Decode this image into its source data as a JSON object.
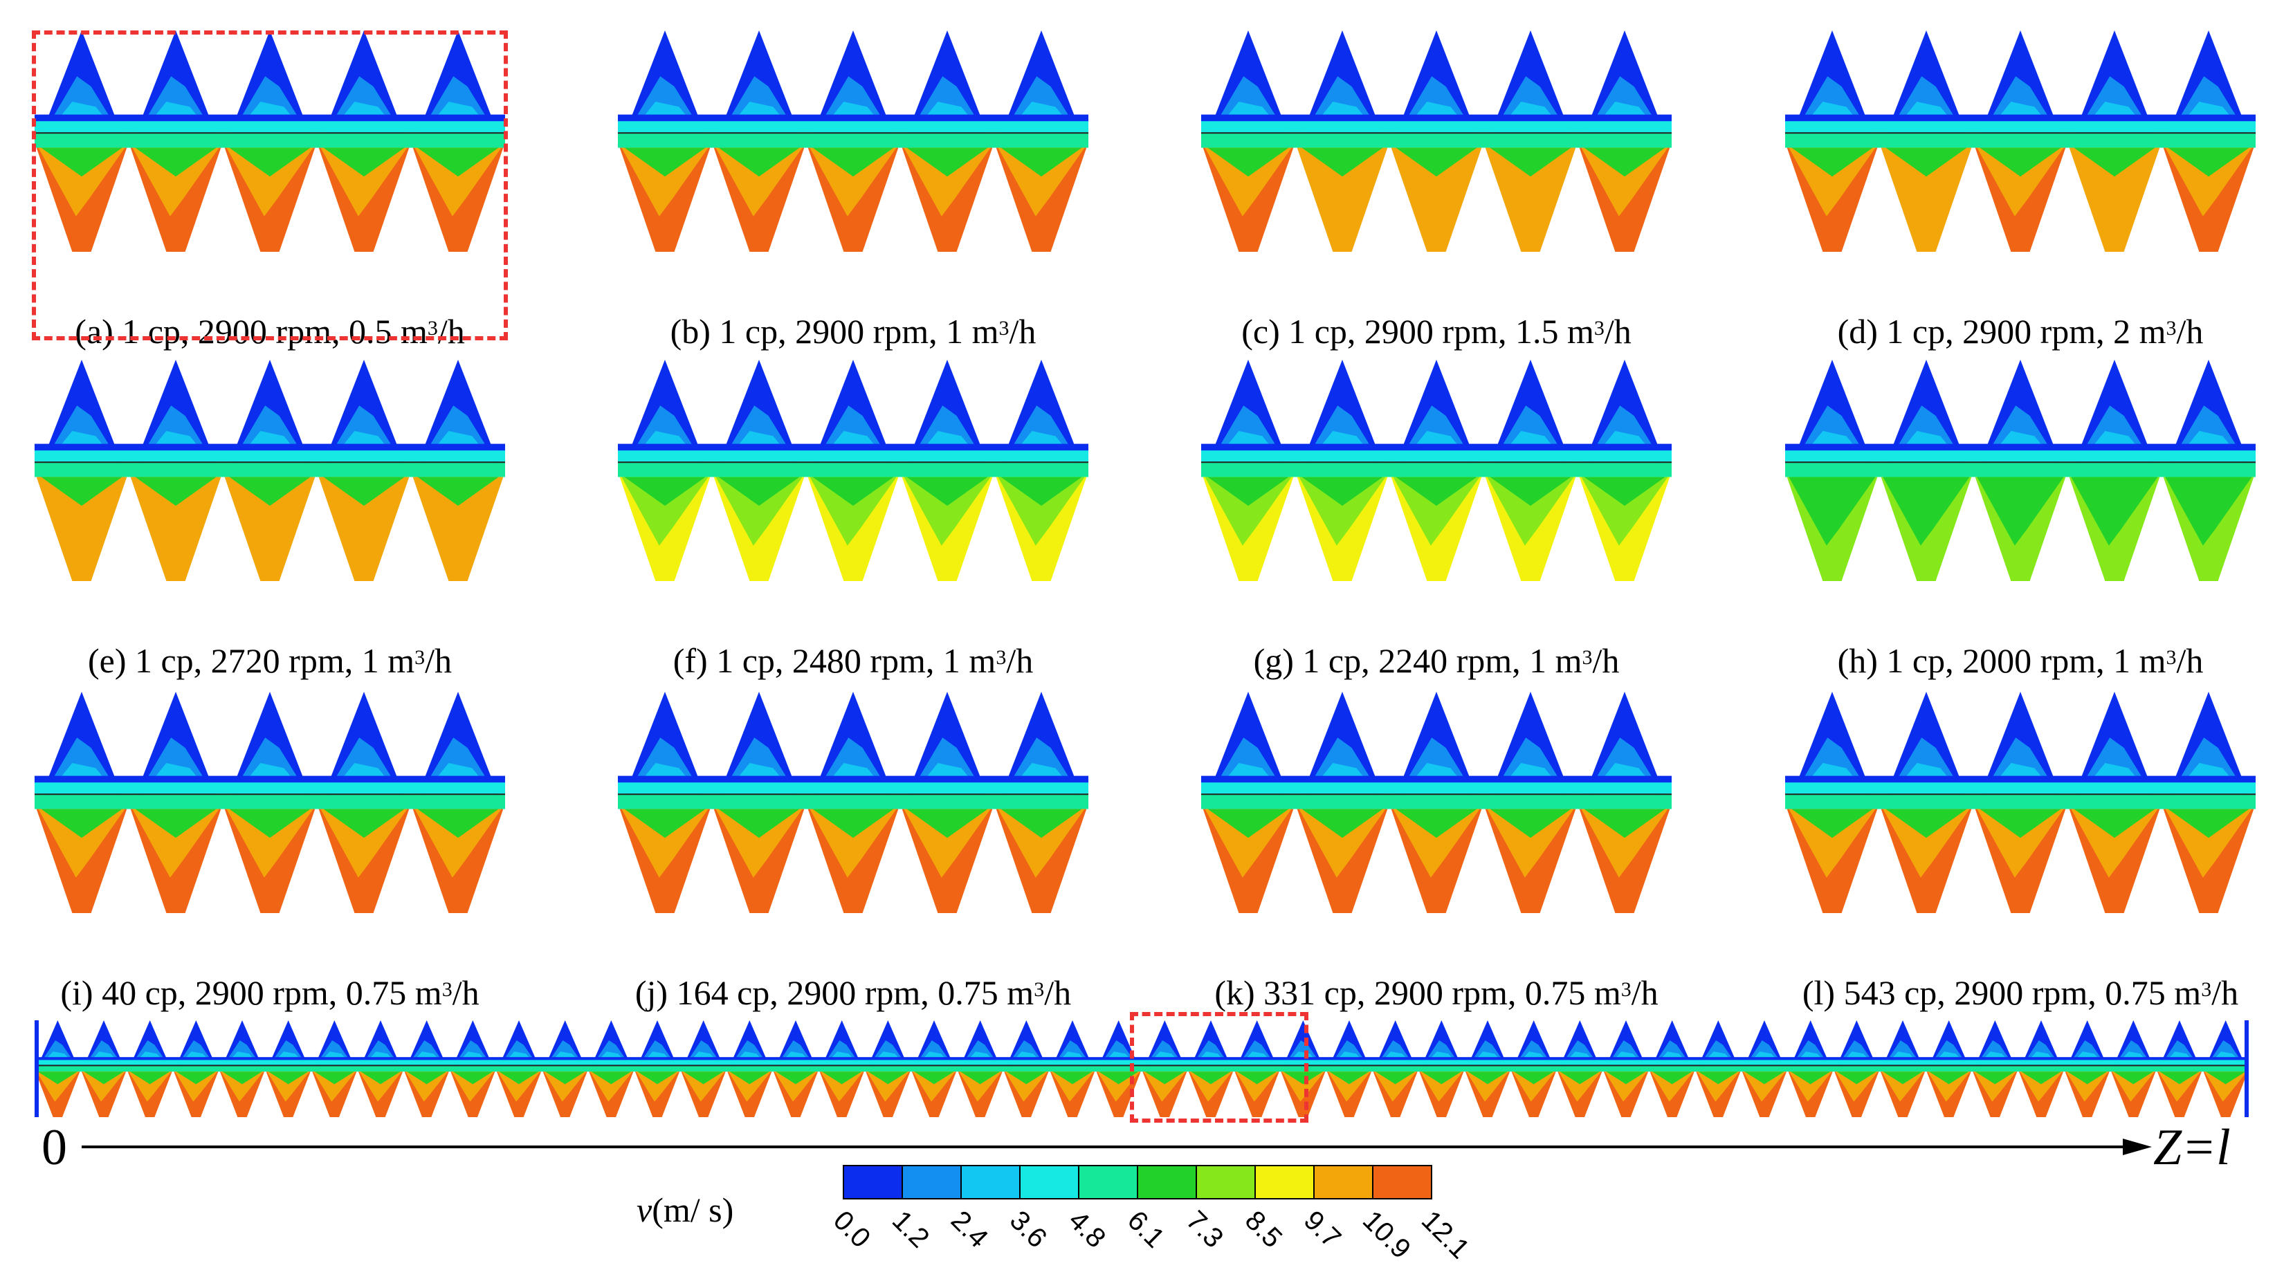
{
  "panels": [
    {
      "id": "a",
      "caption_pre": "(a) 1 cp, 2900 rpm, 0.5 m",
      "caption_post": "/h",
      "profile": [
        3,
        3,
        3,
        3,
        3
      ]
    },
    {
      "id": "b",
      "caption_pre": "(b) 1 cp, 2900 rpm, 1 m",
      "caption_post": "/h",
      "profile": [
        3,
        3,
        3,
        3,
        3
      ]
    },
    {
      "id": "c",
      "caption_pre": "(c) 1 cp, 2900 rpm, 1.5 m",
      "caption_post": "/h",
      "profile": [
        3,
        2,
        2,
        2,
        3
      ]
    },
    {
      "id": "d",
      "caption_pre": "(d) 1 cp, 2900 rpm, 2 m",
      "caption_post": "/h",
      "profile": [
        3,
        2,
        3,
        2,
        3
      ]
    },
    {
      "id": "e",
      "caption_pre": "(e) 1 cp, 2720 rpm, 1 m",
      "caption_post": "/h",
      "profile": [
        2,
        2,
        2,
        2,
        2
      ]
    },
    {
      "id": "f",
      "caption_pre": "(f) 1 cp, 2480 rpm, 1 m",
      "caption_post": "/h",
      "profile": [
        1,
        1,
        1,
        1,
        1
      ]
    },
    {
      "id": "g",
      "caption_pre": "(g) 1 cp, 2240 rpm, 1 m",
      "caption_post": "/h",
      "profile": [
        1,
        1,
        1,
        1,
        1
      ]
    },
    {
      "id": "h",
      "caption_pre": "(h) 1 cp, 2000 rpm, 1 m",
      "caption_post": "/h",
      "profile": [
        0,
        0,
        0,
        0,
        0
      ]
    },
    {
      "id": "i",
      "caption_pre": "(i) 40 cp, 2900 rpm, 0.75 m",
      "caption_post": "/h",
      "profile": [
        3,
        3,
        3,
        3,
        3
      ]
    },
    {
      "id": "j",
      "caption_pre": "(j) 164 cp, 2900 rpm, 0.75 m",
      "caption_post": "/h",
      "profile": [
        3,
        3,
        3,
        3,
        3
      ]
    },
    {
      "id": "k",
      "caption_pre": "(k) 331 cp, 2900 rpm, 0.75 m",
      "caption_post": "/h",
      "profile": [
        3,
        3,
        3,
        3,
        3
      ]
    },
    {
      "id": "l",
      "caption_pre": "(l) 543 cp, 2900 rpm, 0.75 m",
      "caption_post": "/h",
      "profile": [
        3,
        3,
        3,
        3,
        3
      ]
    }
  ],
  "caption_sup": "3",
  "strip": {
    "teeth": 48
  },
  "axis": {
    "start_label": "0",
    "end_label": "Z=l"
  },
  "legend": {
    "title_var": "v",
    "title_unit": "(m/ s)",
    "ticks": [
      "0.0",
      "1.2",
      "2.4",
      "3.6",
      "4.8",
      "6.1",
      "7.3",
      "8.5",
      "9.7",
      "10.9",
      "12.1"
    ],
    "colors": [
      "#0a2dee",
      "#138ff2",
      "#12c7f2",
      "#16e8e4",
      "#16e89a",
      "#22d22a",
      "#86e81a",
      "#f2f20e",
      "#f2a60a",
      "#f06416"
    ]
  }
}
